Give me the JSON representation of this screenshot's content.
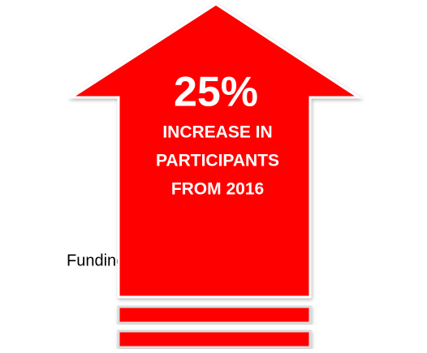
{
  "arrow": {
    "headline": "25%",
    "lines": [
      "INCREASE IN",
      "PARTICIPANTS",
      "FROM 2016"
    ]
  },
  "side_label": "Funding"
}
